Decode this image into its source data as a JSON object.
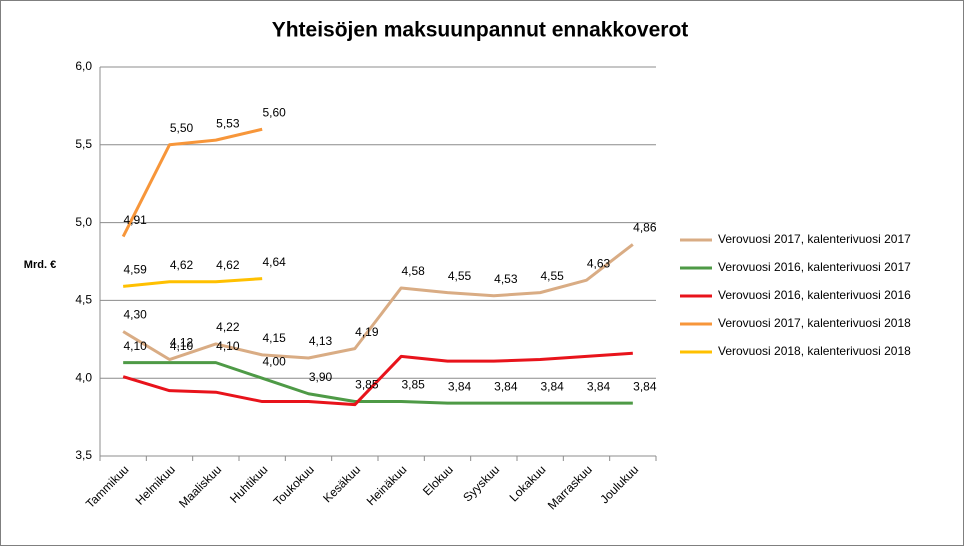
{
  "chart_data": {
    "type": "line",
    "title": "Yhteisöjen maksuunpannut ennakkoverot",
    "y_label": "Mrd. €",
    "categories": [
      "Tammikuu",
      "Helmikuu",
      "Maaliskuu",
      "Huhtikuu",
      "Toukokuu",
      "Kesäkuu",
      "Heinäkuu",
      "Elokuu",
      "Syyskuu",
      "Lokakuu",
      "Marraskuu",
      "Joulukuu"
    ],
    "ylim": [
      3.5,
      6.0
    ],
    "yticks": [
      {
        "value": 3.5,
        "label": "3,5"
      },
      {
        "value": 4.0,
        "label": "4,0"
      },
      {
        "value": 4.5,
        "label": "4,5"
      },
      {
        "value": 5.0,
        "label": "5,0"
      },
      {
        "value": 5.5,
        "label": "5,5"
      },
      {
        "value": 6.0,
        "label": "6,0"
      }
    ],
    "grid": true,
    "legend": "right",
    "series": [
      {
        "name": "Verovuosi 2017, kalenterivuosi 2017",
        "color": "#d9ac84",
        "values": [
          4.3,
          4.12,
          4.22,
          4.15,
          4.13,
          4.19,
          4.58,
          4.55,
          4.53,
          4.55,
          4.63,
          4.86
        ],
        "value_labels": [
          "4,30",
          "4,12",
          "4,22",
          "4,15",
          "4,13",
          "4,19",
          "4,58",
          "4,55",
          "4,53",
          "4,55",
          "4,63",
          "4,86"
        ]
      },
      {
        "name": "Verovuosi 2016, kalenterivuosi 2017",
        "color": "#4e9a46",
        "values": [
          4.1,
          4.1,
          4.1,
          4.0,
          3.9,
          3.85,
          3.85,
          3.84,
          3.84,
          3.84,
          3.84,
          3.84
        ],
        "value_labels": [
          "4,10",
          "4,10",
          "4,10",
          "4,00",
          "3,90",
          "3,85",
          "3,85",
          "3,84",
          "3,84",
          "3,84",
          "3,84",
          "3,84"
        ]
      },
      {
        "name": "Verovuosi 2016, kalenterivuosi 2016",
        "color": "#e8131b",
        "values": [
          4.01,
          3.92,
          3.91,
          3.85,
          3.85,
          3.83,
          4.14,
          4.11,
          4.11,
          4.12,
          4.14,
          4.16
        ]
      },
      {
        "name": "Verovuosi 2017, kalenterivuosi 2018",
        "color": "#f7963a",
        "values": [
          4.91,
          5.5,
          5.53,
          5.6,
          null,
          null,
          null,
          null,
          null,
          null,
          null,
          null
        ],
        "value_labels": [
          "4,91",
          "5,50",
          "5,53",
          "5,60",
          null,
          null,
          null,
          null,
          null,
          null,
          null,
          null
        ]
      },
      {
        "name": "Verovuosi 2018, kalenterivuosi 2018",
        "color": "#ffc000",
        "values": [
          4.59,
          4.62,
          4.62,
          4.64,
          null,
          null,
          null,
          null,
          null,
          null,
          null,
          null
        ],
        "value_labels": [
          "4,59",
          "4,62",
          "4,62",
          "4,64",
          null,
          null,
          null,
          null,
          null,
          null,
          null,
          null
        ]
      }
    ]
  }
}
